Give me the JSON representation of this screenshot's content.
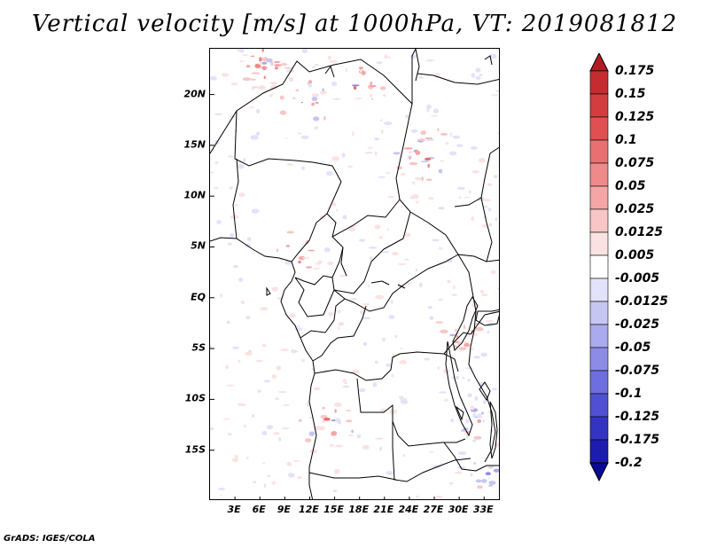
{
  "title": "Vertical velocity [m/s] at 1000hPa, VT: 2019081812",
  "credit": "GrADS: IGES/COLA",
  "map": {
    "lat_labels": [
      "20N",
      "15N",
      "10N",
      "5N",
      "EQ",
      "5S",
      "10S",
      "15S"
    ],
    "lat_values": [
      20,
      15,
      10,
      5,
      0,
      -5,
      -10,
      -15
    ],
    "lon_labels": [
      "3E",
      "6E",
      "9E",
      "12E",
      "15E",
      "18E",
      "21E",
      "24E",
      "27E",
      "30E",
      "33E"
    ],
    "lon_values": [
      3,
      6,
      9,
      12,
      15,
      18,
      21,
      24,
      27,
      30,
      33
    ],
    "lat_range": [
      -20,
      24.5
    ],
    "lon_range": [
      0,
      35
    ]
  },
  "colorbar": {
    "labels": [
      "0.175",
      "0.15",
      "0.125",
      "0.1",
      "0.075",
      "0.05",
      "0.025",
      "0.0125",
      "0.005",
      "-0.005",
      "-0.0125",
      "-0.025",
      "-0.05",
      "-0.075",
      "-0.1",
      "-0.125",
      "-0.175",
      "-0.2"
    ],
    "colors": [
      "#b01c24",
      "#c42c30",
      "#d23e3e",
      "#e05050",
      "#e87070",
      "#ef8a8a",
      "#f4a6a6",
      "#f8c6c6",
      "#fbe2e2",
      "#ffffff",
      "#e2e2fa",
      "#c6c6f2",
      "#aaaaee",
      "#8c8ce6",
      "#6e6ede",
      "#5050d2",
      "#3434c2",
      "#1c1cae",
      "#0a0a96"
    ]
  }
}
